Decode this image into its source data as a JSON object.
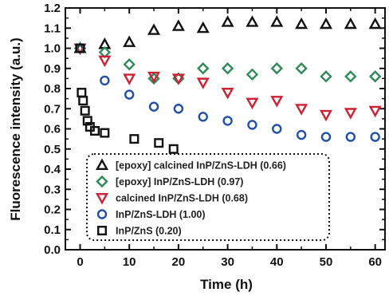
{
  "chart_data": {
    "type": "scatter",
    "xlabel": "Time (h)",
    "ylabel": "Fluorescence intensity (a.u.)",
    "xlim": [
      -3,
      62
    ],
    "ylim": [
      0.0,
      1.2
    ],
    "xticks": [
      "0",
      "10",
      "20",
      "30",
      "40",
      "50",
      "60"
    ],
    "yticks": [
      "0.0",
      "0.1",
      "0.2",
      "0.3",
      "0.4",
      "0.5",
      "0.6",
      "0.7",
      "0.8",
      "0.9",
      "1.0",
      "1.1",
      "1.2"
    ],
    "grid": false,
    "legend_position": "lower-center inside plot",
    "series": [
      {
        "name": "[epoxy] calcined InP/ZnS-LDH (0.66)",
        "marker": "triangle-up",
        "color": "#111111",
        "x": [
          0,
          5,
          10,
          15,
          20,
          25,
          30,
          35,
          40,
          45,
          50,
          55,
          60
        ],
        "y": [
          1.0,
          1.02,
          1.03,
          1.09,
          1.11,
          1.1,
          1.13,
          1.13,
          1.13,
          1.12,
          1.12,
          1.12,
          1.12
        ]
      },
      {
        "name": "[epoxy] InP/ZnS-LDH (0.97)",
        "marker": "diamond",
        "color": "#2e8b57",
        "x": [
          0,
          5,
          10,
          15,
          20,
          25,
          30,
          35,
          40,
          45,
          50,
          55,
          60
        ],
        "y": [
          1.0,
          0.98,
          0.92,
          0.85,
          0.85,
          0.9,
          0.9,
          0.87,
          0.9,
          0.9,
          0.86,
          0.86,
          0.86
        ]
      },
      {
        "name": "calcined InP/ZnS-LDH (0.68)",
        "marker": "triangle-down",
        "color": "#cc2233",
        "x": [
          0,
          5,
          10,
          15,
          20,
          25,
          30,
          35,
          40,
          45,
          50,
          55,
          60
        ],
        "y": [
          1.0,
          0.94,
          0.85,
          0.86,
          0.85,
          0.83,
          0.78,
          0.73,
          0.74,
          0.7,
          0.67,
          0.68,
          0.69
        ]
      },
      {
        "name": "InP/ZnS-LDH (1.00)",
        "marker": "circle",
        "color": "#1f4fa8",
        "x": [
          0,
          5,
          10,
          15,
          20,
          25,
          30,
          35,
          40,
          45,
          50,
          55,
          60
        ],
        "y": [
          1.0,
          0.84,
          0.77,
          0.71,
          0.7,
          0.66,
          0.64,
          0.62,
          0.6,
          0.57,
          0.56,
          0.56,
          0.56
        ]
      },
      {
        "name": "InP/ZnS (0.20)",
        "marker": "square",
        "color": "#111111",
        "x": [
          0,
          0.3,
          0.6,
          1,
          1.5,
          2,
          3,
          5,
          11,
          16,
          19
        ],
        "y": [
          1.0,
          0.78,
          0.74,
          0.69,
          0.64,
          0.61,
          0.59,
          0.58,
          0.55,
          0.53,
          0.5
        ]
      }
    ]
  }
}
